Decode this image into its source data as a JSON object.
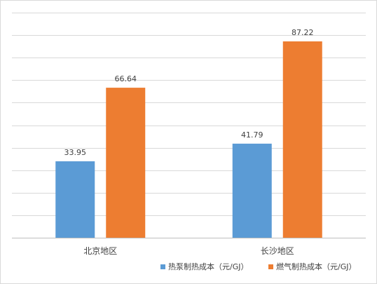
{
  "chart_data": {
    "type": "bar",
    "title": "",
    "xlabel": "",
    "ylabel": "",
    "categories": [
      "北京地区",
      "长沙地区"
    ],
    "series": [
      {
        "name": "热泵制热成本（元/GJ）",
        "values": [
          33.95,
          41.79
        ],
        "color": "#5b9bd5"
      },
      {
        "name": "燃气制热成本（元/GJ）",
        "values": [
          66.64,
          87.22
        ],
        "color": "#ed7d31"
      }
    ],
    "ylim": [
      0,
      100
    ],
    "y_tick_step": 10,
    "grid": true,
    "y_axis_labels_shown": false,
    "legend_position": "bottom-right"
  }
}
